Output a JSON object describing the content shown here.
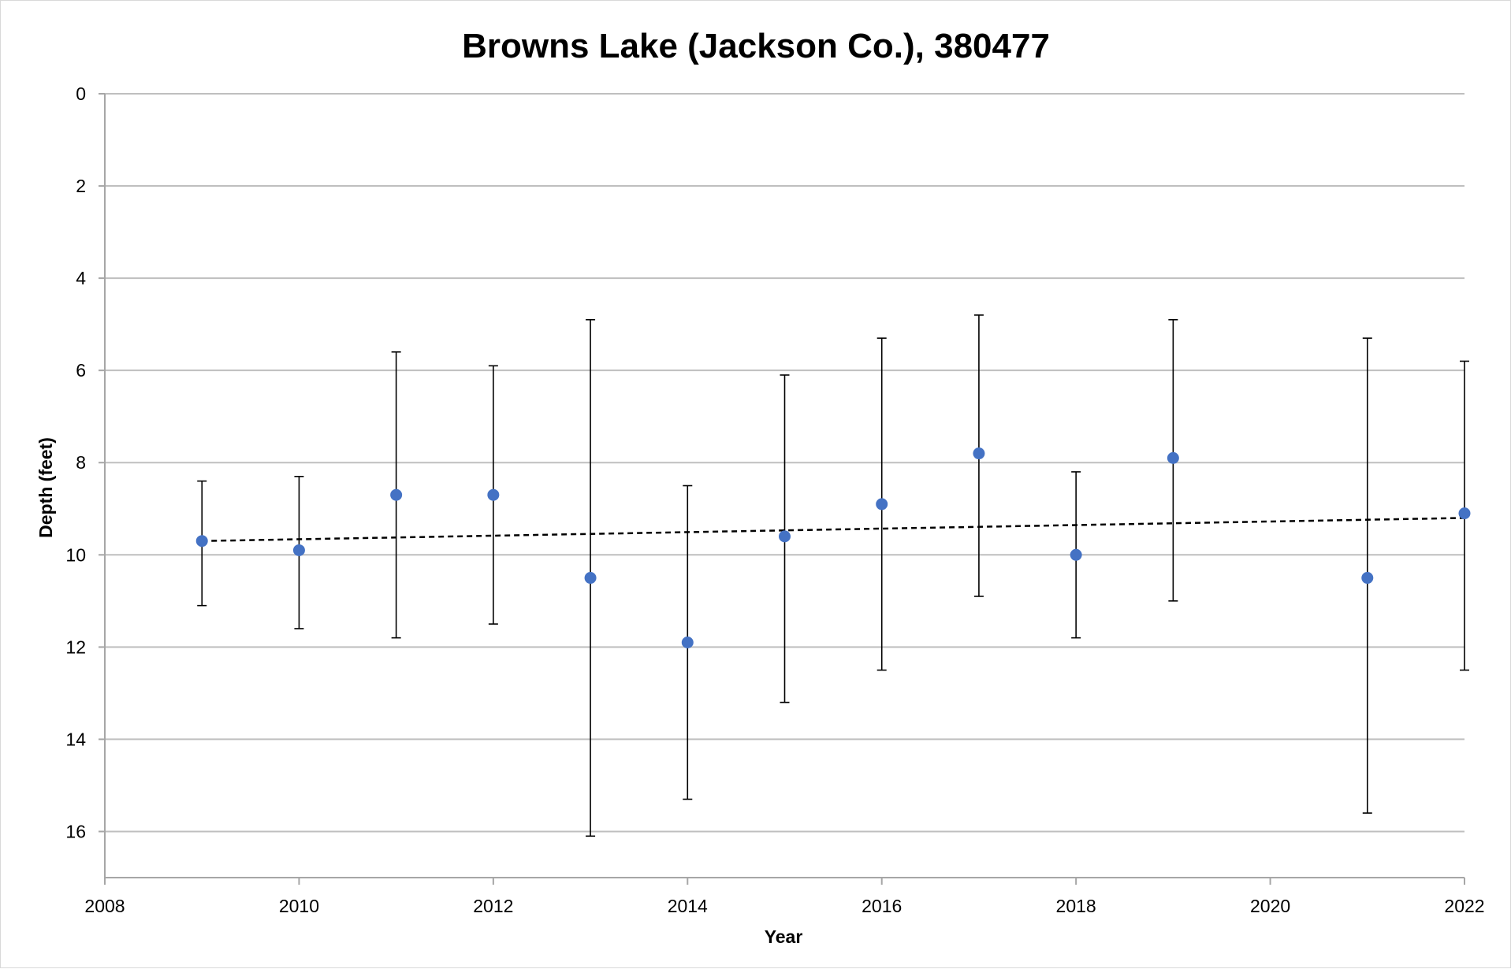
{
  "chart_data": {
    "type": "scatter",
    "title": "Browns Lake (Jackson Co.), 380477",
    "xlabel": "Year",
    "ylabel": "Depth (feet)",
    "xlim": [
      2008,
      2022
    ],
    "ylim": [
      0,
      17
    ],
    "y_inverted": true,
    "grid": "horizontal",
    "x_ticks": [
      2008,
      2010,
      2012,
      2014,
      2016,
      2018,
      2020,
      2022
    ],
    "y_ticks": [
      0,
      2,
      4,
      6,
      8,
      10,
      12,
      14,
      16
    ],
    "series": [
      {
        "marker_color": "#4472c4",
        "points": [
          {
            "x": 2009,
            "y": 9.7,
            "low": 8.4,
            "high": 11.1
          },
          {
            "x": 2010,
            "y": 9.9,
            "low": 8.3,
            "high": 11.6
          },
          {
            "x": 2011,
            "y": 8.7,
            "low": 5.6,
            "high": 11.8
          },
          {
            "x": 2012,
            "y": 8.7,
            "low": 5.9,
            "high": 11.5
          },
          {
            "x": 2013,
            "y": 10.5,
            "low": 4.9,
            "high": 16.1
          },
          {
            "x": 2014,
            "y": 11.9,
            "low": 8.5,
            "high": 15.3
          },
          {
            "x": 2015,
            "y": 9.6,
            "low": 6.1,
            "high": 13.2
          },
          {
            "x": 2016,
            "y": 8.9,
            "low": 5.3,
            "high": 12.5
          },
          {
            "x": 2017,
            "y": 7.8,
            "low": 4.8,
            "high": 10.9
          },
          {
            "x": 2018,
            "y": 10.0,
            "low": 8.2,
            "high": 11.8
          },
          {
            "x": 2019,
            "y": 7.9,
            "low": 4.9,
            "high": 11.0
          },
          {
            "x": 2021,
            "y": 10.5,
            "low": 5.3,
            "high": 15.6
          },
          {
            "x": 2022,
            "y": 9.1,
            "low": 5.8,
            "high": 12.5
          }
        ]
      }
    ],
    "trendline": {
      "style": "dashed",
      "color": "#000000",
      "x": [
        2009,
        2022
      ],
      "y": [
        9.7,
        9.2
      ]
    },
    "colors": {
      "grid": "#bfbfbf",
      "axis": "#a6a6a6",
      "error_bar": "#000000"
    }
  }
}
